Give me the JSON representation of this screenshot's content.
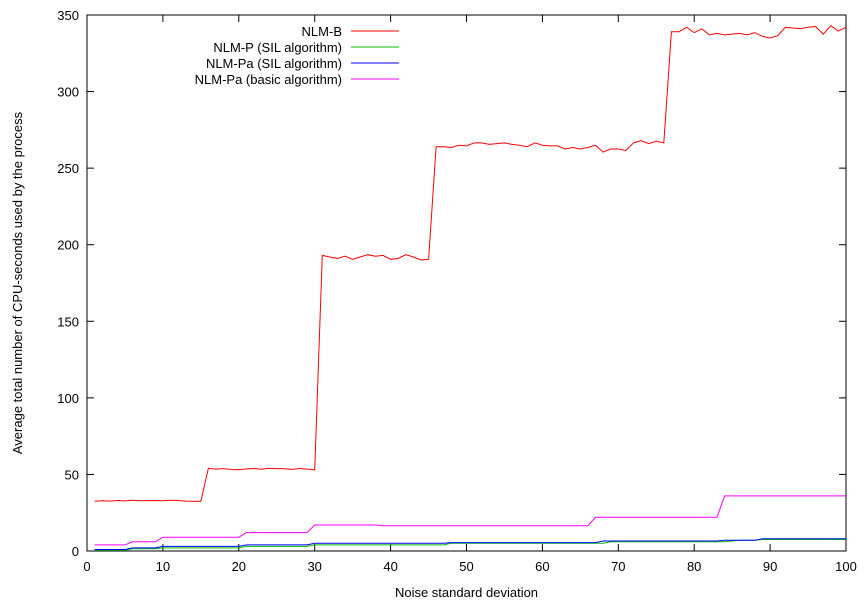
{
  "chart_data": {
    "type": "line",
    "title": "",
    "xlabel": "Noise standard deviation",
    "ylabel": "Average total number of CPU-seconds used by the process",
    "xlim": [
      0,
      100
    ],
    "ylim": [
      0,
      350
    ],
    "xticks": [
      0,
      10,
      20,
      30,
      40,
      50,
      60,
      70,
      80,
      90,
      100
    ],
    "yticks": [
      0,
      50,
      100,
      150,
      200,
      250,
      300,
      350
    ],
    "legend_position": "top-left",
    "grid": false,
    "series": [
      {
        "name": "NLM-B",
        "color": "#ff0000",
        "x": [
          1,
          2,
          3,
          4,
          5,
          6,
          7,
          8,
          9,
          10,
          11,
          12,
          13,
          14,
          15,
          16,
          17,
          18,
          19,
          20,
          21,
          22,
          23,
          24,
          25,
          26,
          27,
          28,
          29,
          30,
          31,
          32,
          33,
          34,
          35,
          36,
          37,
          38,
          39,
          40,
          41,
          42,
          43,
          44,
          45,
          46,
          47,
          48,
          49,
          50,
          51,
          52,
          53,
          54,
          55,
          56,
          57,
          58,
          59,
          60,
          61,
          62,
          63,
          64,
          65,
          66,
          67,
          68,
          69,
          70,
          71,
          72,
          73,
          74,
          75,
          76,
          77,
          78,
          79,
          80,
          81,
          82,
          83,
          84,
          85,
          86,
          87,
          88,
          89,
          90,
          91,
          92,
          93,
          94,
          95,
          96,
          97,
          98,
          99,
          100
        ],
        "y": [
          32.5,
          32.8,
          32.6,
          33.0,
          32.7,
          33.1,
          32.8,
          32.9,
          33.0,
          32.8,
          33.1,
          33.0,
          32.6,
          32.5,
          32.4,
          54,
          53.5,
          53.8,
          53.2,
          53.1,
          53.6,
          53.9,
          53.4,
          54.0,
          53.8,
          53.7,
          53.3,
          53.9,
          53.5,
          53.0,
          193,
          192,
          191,
          192.5,
          190.5,
          192,
          193.5,
          192.5,
          193,
          190.5,
          191,
          193.5,
          192,
          190,
          190.5,
          264,
          264,
          263.5,
          265,
          264.5,
          266.5,
          266.5,
          265.5,
          266,
          266.5,
          265.5,
          265,
          264,
          266.5,
          265,
          264.5,
          264.5,
          262.5,
          263.5,
          262.5,
          263.5,
          265,
          260.5,
          262.5,
          262.5,
          261.5,
          266.5,
          268,
          266,
          267.5,
          266.5,
          339,
          339,
          342,
          338.5,
          341,
          337,
          338,
          337,
          337.5,
          338,
          337,
          338.5,
          336,
          335,
          336.5,
          342,
          341.5,
          341,
          342,
          342.5,
          337.5,
          343,
          339.5,
          342
        ]
      },
      {
        "name": "NLM-P (SIL algorithm)",
        "color": "#00c000",
        "x": [
          1,
          5,
          6,
          9,
          10,
          20,
          21,
          29,
          30,
          47,
          48,
          68,
          69,
          84,
          85,
          86,
          88,
          89,
          100
        ],
        "y": [
          0.5,
          0.5,
          1.5,
          1.5,
          2,
          2,
          3,
          3,
          4,
          4,
          5,
          5,
          6,
          6,
          6.5,
          7,
          7,
          7.5,
          7.5
        ]
      },
      {
        "name": "NLM-Pa (SIL algorithm)",
        "color": "#0000ff",
        "x": [
          1,
          5,
          6,
          9,
          10,
          20,
          21,
          29,
          30,
          47,
          48,
          67,
          68,
          83,
          84,
          88,
          89,
          100
        ],
        "y": [
          1,
          1,
          2,
          2,
          3,
          3,
          4,
          4,
          5,
          5,
          5.5,
          5.5,
          6.5,
          6.5,
          7,
          7,
          8,
          8
        ]
      },
      {
        "name": "NLM-Pa (basic algorithm)",
        "color": "#ff00ff",
        "x": [
          1,
          5,
          6,
          9,
          10,
          20,
          21,
          29,
          30,
          38,
          39,
          66,
          67,
          83,
          84,
          100
        ],
        "y": [
          4,
          4,
          6,
          6,
          9,
          9,
          12,
          12,
          17,
          17,
          16.5,
          16.5,
          22,
          22,
          36,
          36
        ]
      }
    ]
  }
}
